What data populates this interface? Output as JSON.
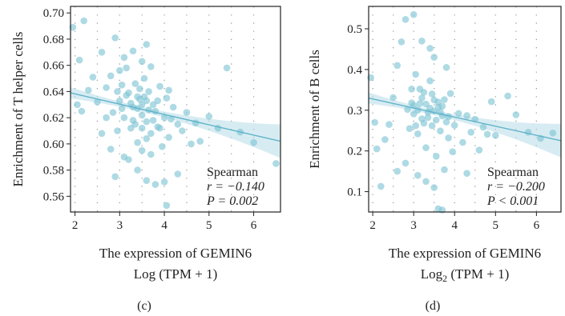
{
  "colors": {
    "point": "#7cc3d4",
    "line": "#5fb3c9",
    "band": "#b7dde8",
    "frame": "#222222",
    "grid": "#9a9a9a"
  },
  "chart_data": [
    {
      "type": "scatter",
      "caption": "(c)",
      "ylabel": "Enrichment of T helper cells",
      "xlabel_line1": "The expression of GEMIN6",
      "xlabel_line2": "Log (TPM + 1)",
      "xlim": [
        1.9,
        6.6
      ],
      "ylim": [
        0.548,
        0.705
      ],
      "xticks": [
        2,
        3,
        4,
        5,
        6
      ],
      "yticks": [
        0.56,
        0.58,
        0.6,
        0.62,
        0.64,
        0.66,
        0.68,
        0.7
      ],
      "ytick_labels": [
        "0.56",
        "0.58",
        "0.60",
        "0.62",
        "0.64",
        "0.66",
        "0.68",
        "0.70"
      ],
      "grid": true,
      "stats": {
        "method": "Spearman",
        "r_label": "r = −0.140",
        "p_label": "P = 0.002"
      },
      "fit": {
        "x": [
          1.9,
          6.6
        ],
        "y": [
          0.639,
          0.602
        ]
      },
      "points": [
        [
          1.95,
          0.689
        ],
        [
          2.2,
          0.694
        ],
        [
          2.1,
          0.664
        ],
        [
          2.3,
          0.641
        ],
        [
          2.05,
          0.63
        ],
        [
          2.15,
          0.625
        ],
        [
          2.4,
          0.651
        ],
        [
          2.5,
          0.632
        ],
        [
          2.6,
          0.67
        ],
        [
          2.7,
          0.643
        ],
        [
          2.8,
          0.652
        ],
        [
          2.85,
          0.624
        ],
        [
          2.9,
          0.681
        ],
        [
          2.95,
          0.61
        ],
        [
          3.0,
          0.633
        ],
        [
          3.05,
          0.645
        ],
        [
          3.1,
          0.62
        ],
        [
          3.15,
          0.658
        ],
        [
          3.2,
          0.639
        ],
        [
          3.25,
          0.612
        ],
        [
          3.3,
          0.628
        ],
        [
          3.35,
          0.646
        ],
        [
          3.4,
          0.601
        ],
        [
          3.45,
          0.634
        ],
        [
          3.5,
          0.622
        ],
        [
          3.55,
          0.65
        ],
        [
          3.6,
          0.617
        ],
        [
          3.65,
          0.64
        ],
        [
          3.7,
          0.608
        ],
        [
          3.75,
          0.63
        ],
        [
          3.8,
          0.625
        ],
        [
          3.85,
          0.613
        ],
        [
          3.9,
          0.644
        ],
        [
          3.95,
          0.598
        ],
        [
          4.0,
          0.62
        ],
        [
          4.05,
          0.635
        ],
        [
          4.1,
          0.605
        ],
        [
          4.2,
          0.628
        ],
        [
          4.3,
          0.615
        ],
        [
          4.4,
          0.61
        ],
        [
          4.5,
          0.624
        ],
        [
          4.6,
          0.6
        ],
        [
          4.7,
          0.616
        ],
        [
          4.8,
          0.602
        ],
        [
          5.0,
          0.621
        ],
        [
          5.2,
          0.612
        ],
        [
          5.4,
          0.658
        ],
        [
          5.7,
          0.609
        ],
        [
          6.0,
          0.601
        ],
        [
          6.5,
          0.585
        ],
        [
          3.3,
          0.671
        ],
        [
          3.5,
          0.663
        ],
        [
          3.6,
          0.676
        ],
        [
          3.7,
          0.659
        ],
        [
          3.2,
          0.588
        ],
        [
          3.4,
          0.58
        ],
        [
          3.6,
          0.572
        ],
        [
          3.8,
          0.569
        ],
        [
          4.0,
          0.571
        ],
        [
          4.05,
          0.553
        ],
        [
          3.1,
          0.59
        ],
        [
          2.8,
          0.596
        ],
        [
          2.9,
          0.575
        ],
        [
          3.5,
          0.595
        ],
        [
          3.7,
          0.592
        ],
        [
          4.3,
          0.577
        ],
        [
          2.7,
          0.62
        ],
        [
          2.6,
          0.608
        ],
        [
          3.0,
          0.656
        ],
        [
          3.1,
          0.666
        ],
        [
          3.3,
          0.618
        ],
        [
          3.4,
          0.627
        ],
        [
          3.5,
          0.612
        ],
        [
          3.55,
          0.636
        ],
        [
          3.45,
          0.642
        ],
        [
          3.35,
          0.615
        ],
        [
          3.25,
          0.631
        ],
        [
          3.65,
          0.626
        ],
        [
          3.75,
          0.618
        ],
        [
          3.85,
          0.633
        ],
        [
          3.15,
          0.637
        ],
        [
          3.05,
          0.627
        ],
        [
          2.95,
          0.64
        ],
        [
          3.6,
          0.604
        ],
        [
          3.9,
          0.612
        ],
        [
          4.1,
          0.641
        ],
        [
          4.15,
          0.619
        ],
        [
          3.5,
          0.63
        ],
        [
          3.4,
          0.636
        ],
        [
          3.6,
          0.633
        ]
      ]
    },
    {
      "type": "scatter",
      "caption": "(d)",
      "ylabel": "Enrichment of B cells",
      "xlabel_line1": "The expression of GEMIN6",
      "xlabel_line2_prefix": "Log",
      "xlabel_line2_sub": "2",
      "xlabel_line2_suffix": " (TPM + 1)",
      "xlim": [
        1.9,
        6.6
      ],
      "ylim": [
        0.05,
        0.555
      ],
      "xticks": [
        2,
        3,
        4,
        5,
        6
      ],
      "yticks": [
        0.1,
        0.2,
        0.3,
        0.4,
        0.5
      ],
      "ytick_labels": [
        "0.1",
        "0.2",
        "0.3",
        "0.4",
        "0.5"
      ],
      "grid": true,
      "stats": {
        "method": "Spearman",
        "r_label": "r = −0.200",
        "p_label": "P < 0.001"
      },
      "fit": {
        "x": [
          1.9,
          6.6
        ],
        "y": [
          0.33,
          0.225
        ]
      },
      "points": [
        [
          1.95,
          0.38
        ],
        [
          2.05,
          0.27
        ],
        [
          2.1,
          0.205
        ],
        [
          2.2,
          0.113
        ],
        [
          2.3,
          0.228
        ],
        [
          2.4,
          0.265
        ],
        [
          2.5,
          0.331
        ],
        [
          2.6,
          0.41
        ],
        [
          2.7,
          0.468
        ],
        [
          2.8,
          0.523
        ],
        [
          2.85,
          0.302
        ],
        [
          2.9,
          0.255
        ],
        [
          2.95,
          0.352
        ],
        [
          3.0,
          0.291
        ],
        [
          3.05,
          0.388
        ],
        [
          3.1,
          0.242
        ],
        [
          3.15,
          0.316
        ],
        [
          3.2,
          0.279
        ],
        [
          3.25,
          0.344
        ],
        [
          3.3,
          0.208
        ],
        [
          3.35,
          0.295
        ],
        [
          3.4,
          0.372
        ],
        [
          3.45,
          0.262
        ],
        [
          3.5,
          0.325
        ],
        [
          3.55,
          0.187
        ],
        [
          3.6,
          0.308
        ],
        [
          3.65,
          0.249
        ],
        [
          3.7,
          0.286
        ],
        [
          3.75,
          0.154
        ],
        [
          3.8,
          0.271
        ],
        [
          3.85,
          0.232
        ],
        [
          3.9,
          0.341
        ],
        [
          3.95,
          0.198
        ],
        [
          4.0,
          0.263
        ],
        [
          4.1,
          0.292
        ],
        [
          4.2,
          0.221
        ],
        [
          4.3,
          0.287
        ],
        [
          4.4,
          0.246
        ],
        [
          4.5,
          0.278
        ],
        [
          4.6,
          0.202
        ],
        [
          4.7,
          0.258
        ],
        [
          4.8,
          0.241
        ],
        [
          4.9,
          0.321
        ],
        [
          5.0,
          0.238
        ],
        [
          5.3,
          0.335
        ],
        [
          5.5,
          0.289
        ],
        [
          5.8,
          0.246
        ],
        [
          6.1,
          0.231
        ],
        [
          6.4,
          0.244
        ],
        [
          3.6,
          0.058
        ],
        [
          3.7,
          0.055
        ],
        [
          3.0,
          0.535
        ],
        [
          3.2,
          0.47
        ],
        [
          3.4,
          0.452
        ],
        [
          3.5,
          0.43
        ],
        [
          3.8,
          0.405
        ],
        [
          2.6,
          0.15
        ],
        [
          2.8,
          0.17
        ],
        [
          3.1,
          0.14
        ],
        [
          3.3,
          0.125
        ],
        [
          3.5,
          0.11
        ],
        [
          4.3,
          0.145
        ],
        [
          3.0,
          0.312
        ],
        [
          3.1,
          0.3
        ],
        [
          3.2,
          0.33
        ],
        [
          3.3,
          0.315
        ],
        [
          3.4,
          0.305
        ],
        [
          3.5,
          0.298
        ],
        [
          3.6,
          0.32
        ],
        [
          3.7,
          0.31
        ],
        [
          3.35,
          0.282
        ],
        [
          3.45,
          0.34
        ],
        [
          3.55,
          0.276
        ],
        [
          3.25,
          0.268
        ],
        [
          3.15,
          0.352
        ],
        [
          3.65,
          0.296
        ],
        [
          3.75,
          0.326
        ],
        [
          3.85,
          0.284
        ],
        [
          2.95,
          0.318
        ],
        [
          3.05,
          0.262
        ]
      ]
    }
  ]
}
